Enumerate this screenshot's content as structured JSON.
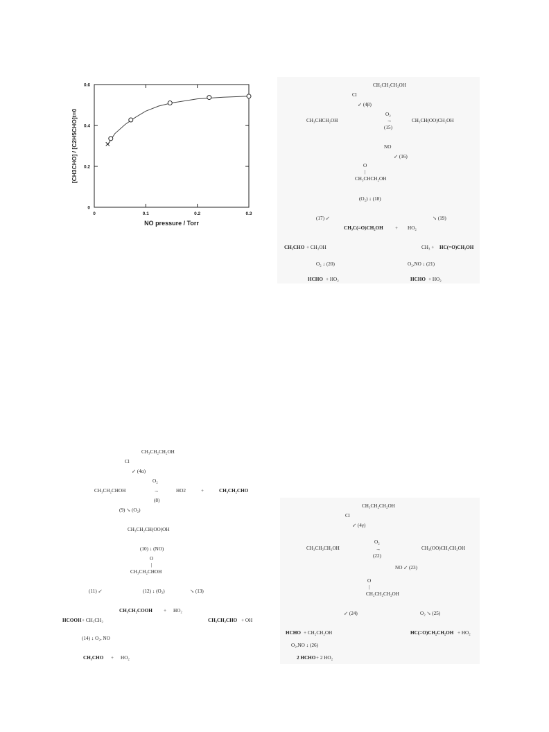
{
  "chart_data": {
    "type": "scatter",
    "xlabel": "NO pressure / Torr",
    "ylabel": "[CH3CHO] / [C2H5CHO]t=0",
    "xlim": [
      0,
      0.3
    ],
    "ylim": [
      0,
      0.6
    ],
    "x_ticks": [
      "0",
      "0.1",
      "0.2",
      "0.3"
    ],
    "y_ticks": [
      "0",
      "0.2",
      "0.4",
      "0.6"
    ],
    "points_circle": [
      {
        "x": 0.032,
        "y": 0.336
      },
      {
        "x": 0.071,
        "y": 0.427
      },
      {
        "x": 0.147,
        "y": 0.51
      },
      {
        "x": 0.223,
        "y": 0.537
      },
      {
        "x": 0.3,
        "y": 0.543
      }
    ],
    "points_cross": [
      {
        "x": 0.026,
        "y": 0.309
      }
    ],
    "fit_curve": [
      {
        "x": 0.026,
        "y": 0.306
      },
      {
        "x": 0.04,
        "y": 0.36
      },
      {
        "x": 0.06,
        "y": 0.405
      },
      {
        "x": 0.08,
        "y": 0.44
      },
      {
        "x": 0.1,
        "y": 0.47
      },
      {
        "x": 0.125,
        "y": 0.495
      },
      {
        "x": 0.15,
        "y": 0.51
      },
      {
        "x": 0.2,
        "y": 0.53
      },
      {
        "x": 0.25,
        "y": 0.538
      },
      {
        "x": 0.3,
        "y": 0.543
      }
    ],
    "grid": false
  },
  "scheme_tr": {
    "start": "CH₃CH₂CH₂OH",
    "cl": "Cl",
    "step4b": "↙ (4β)",
    "radical": "CH₃CHCH₂OH",
    "o2": "O₂",
    "arrow": "→",
    "step15": "(15)",
    "peroxy": "CH₃CH(OO)CH₂OH",
    "no": "NO",
    "step16": "↙ (16)",
    "o_label": "O",
    "bond": "|",
    "alkoxy": "CH₃CHCH₂OH",
    "step18": "(O₂) ↓ (18)",
    "step17": "(17) ↙",
    "step19": "↘ (19)",
    "product_mid": "CH₃C(=O)CH₂OH",
    "plus1": "+",
    "ho2_mid": "HO₂",
    "left_prod_bold": "CH₃CHO",
    "left_prod_rest": "+ CH₂OH",
    "right_prod_a": "CH₃ +",
    "right_prod_bold": "HC(=O)CH₂OH",
    "step20": "O₂ ↓ (20)",
    "step21": "O₂,NO ↓ (21)",
    "final_left_bold": "HCHO",
    "final_left_rest": "+ HO₂",
    "final_right_bold": "HCHO",
    "final_right_rest": "+ HO₂"
  },
  "scheme_bl": {
    "start": "CH₃CH₂CH₂OH",
    "cl": "Cl",
    "step4a": "↙ (4α)",
    "o2": "O₂",
    "radical": "CH₃CH₂CHOH",
    "arrow": "→",
    "ho2": "HO2",
    "plus": "+",
    "prod_bold": "CH₃CH₂CHO",
    "step8": "(8)",
    "step9": "(9)   ↘ (O₂)",
    "peroxy": "CH₃CH₂CH(OO)OH",
    "step10": "(10) ↓ (NO)",
    "o_label": "O",
    "bond": "|",
    "alkoxy": "CH₃CH₂CHOH",
    "step11": "(11)  ↙",
    "step12": "(12) ↓ (O₂)",
    "step13": "↘ (13)",
    "acid_bold": "CH₃CH₂COOH",
    "acid_plus": "+",
    "acid_ho2": "HO₂",
    "hcooh_bold": "HCOOH",
    "hcooh_rest": "+ CH₃CH₂",
    "right_bold": "CH₃CH₂CHO",
    "right_rest": "+ OH",
    "step14": "(14) ↓ O₂, NO",
    "final_bold": "CH₃CHO",
    "final_plus": "+",
    "final_ho2": "HO₂"
  },
  "scheme_br": {
    "start": "CH₃CH₂CH₂OH",
    "cl": "Cl",
    "step4g": "↙ (4γ)",
    "o2": "O₂",
    "radical": "CH₂CH₂CH₂OH",
    "arrow": "→",
    "step22": "(22)",
    "peroxy": "CH₂(OO)CH₂CH₂OH",
    "step23": "NO ↙ (23)",
    "o_label": "O",
    "bond": "|",
    "alkoxy": "CH₂CH₂CH₂OH",
    "step24": "↙ (24)",
    "step25": "O₂  ↘  (25)",
    "left_bold": "HCHO",
    "left_rest": "+ CH₂CH₂OH",
    "right_bold": "HC(=O)CH₂CH₂OH",
    "right_rest": "+ HO₂",
    "step26": "O₂,NO ↓ (26)",
    "final_bold": "2 HCHO",
    "final_rest": "+ 2 HO₂"
  }
}
